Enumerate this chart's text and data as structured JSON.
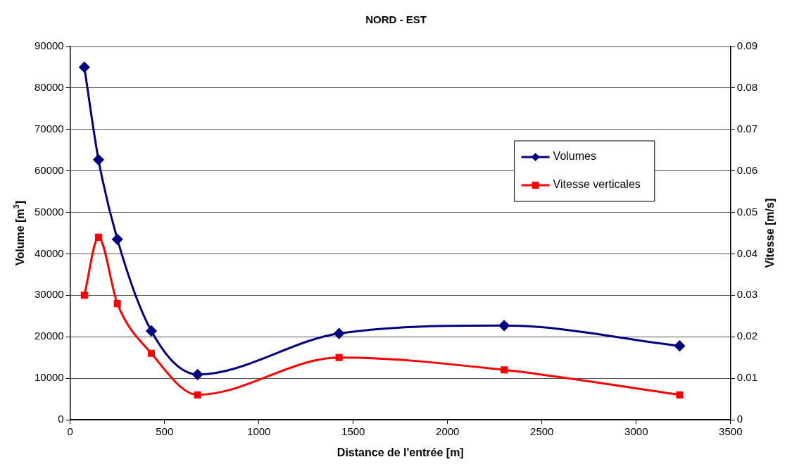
{
  "chart_data": {
    "type": "line",
    "title": "NORD - EST",
    "xlabel": "Distance de l'entrée [m]",
    "ylabel": "Volume [m$^{3}$]",
    "y2label": "Vitesse [m/s]",
    "x": [
      75,
      150,
      250,
      430,
      675,
      1425,
      2300,
      3230
    ],
    "series": [
      {
        "name": "Volumes",
        "color": "#000080",
        "marker": "diamond",
        "values": [
          85000,
          62700,
          43500,
          21400,
          10900,
          20800,
          22700,
          17800
        ]
      },
      {
        "name": "Vitesse verticales",
        "color": "#ff0000",
        "marker": "square",
        "axis": "y2",
        "values": [
          0.03,
          0.044,
          0.028,
          0.016,
          0.006,
          0.015,
          0.012,
          0.006
        ]
      }
    ],
    "xlim": [
      0,
      3500
    ],
    "xticks": [
      0,
      500,
      1000,
      1500,
      2000,
      2500,
      3000,
      3500
    ],
    "ylim": [
      0,
      90000
    ],
    "yticks": [
      0,
      10000,
      20000,
      30000,
      40000,
      50000,
      60000,
      70000,
      80000,
      90000
    ],
    "y2lim": [
      0,
      0.09
    ],
    "y2ticks": [
      0,
      0.01,
      0.02,
      0.03,
      0.04,
      0.05,
      0.06,
      0.07,
      0.08,
      0.09
    ],
    "grid": "y",
    "legend": "top right",
    "line_style": "solid"
  }
}
